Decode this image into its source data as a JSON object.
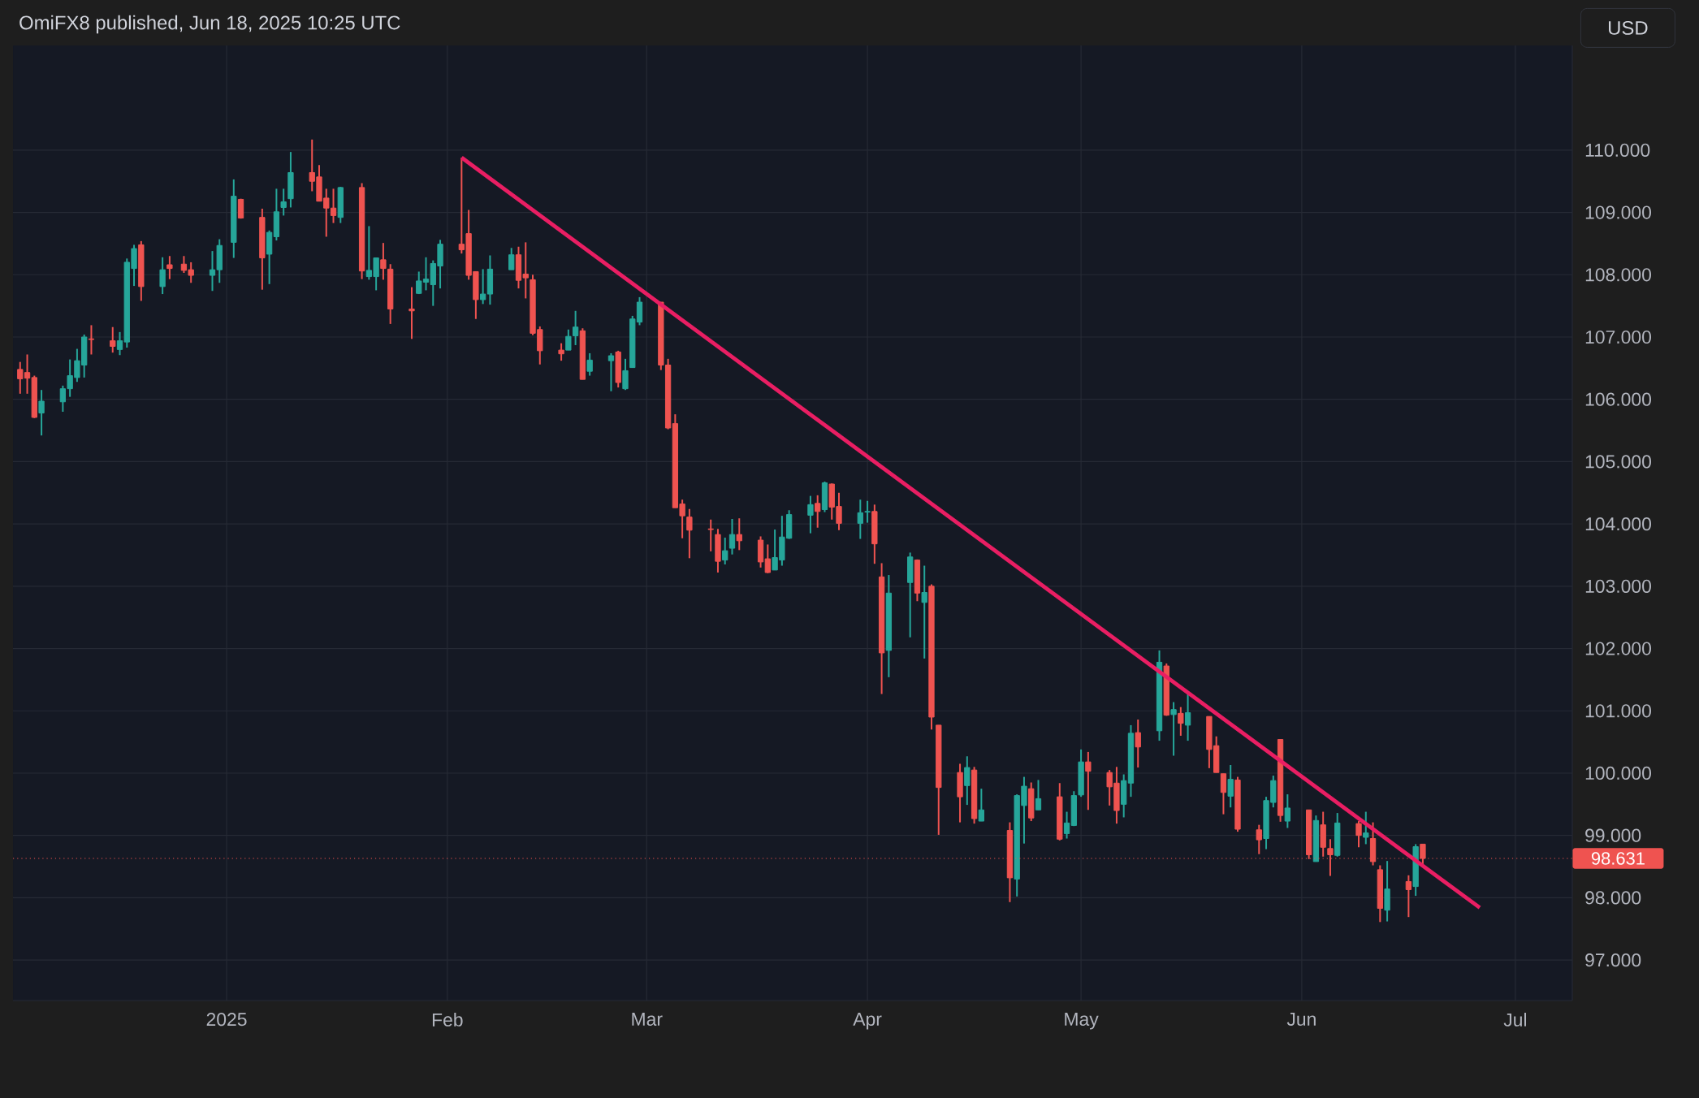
{
  "chart_data": {
    "type": "candlestick",
    "title": "OmiFX8 published, Jun 18, 2025 10:25 UTC",
    "ylabel": "USD",
    "x": [
      "2024-12-03",
      "2024-12-04",
      "2024-12-05",
      "2024-12-06",
      "2024-12-09",
      "2024-12-10",
      "2024-12-11",
      "2024-12-12",
      "2024-12-13",
      "2024-12-16",
      "2024-12-17",
      "2024-12-18",
      "2024-12-19",
      "2024-12-20",
      "2024-12-23",
      "2024-12-24",
      "2024-12-26",
      "2024-12-27",
      "2024-12-30",
      "2024-12-31",
      "2025-01-02",
      "2025-01-03",
      "2025-01-06",
      "2025-01-07",
      "2025-01-08",
      "2025-01-09",
      "2025-01-10",
      "2025-01-13",
      "2025-01-14",
      "2025-01-15",
      "2025-01-16",
      "2025-01-17",
      "2025-01-20",
      "2025-01-21",
      "2025-01-22",
      "2025-01-23",
      "2025-01-24",
      "2025-01-27",
      "2025-01-28",
      "2025-01-29",
      "2025-01-30",
      "2025-01-31",
      "2025-02-03",
      "2025-02-04",
      "2025-02-05",
      "2025-02-06",
      "2025-02-07",
      "2025-02-10",
      "2025-02-11",
      "2025-02-12",
      "2025-02-13",
      "2025-02-14",
      "2025-02-17",
      "2025-02-18",
      "2025-02-19",
      "2025-02-20",
      "2025-02-21",
      "2025-02-24",
      "2025-02-25",
      "2025-02-26",
      "2025-02-27",
      "2025-02-28",
      "2025-03-03",
      "2025-03-04",
      "2025-03-05",
      "2025-03-06",
      "2025-03-07",
      "2025-03-10",
      "2025-03-11",
      "2025-03-12",
      "2025-03-13",
      "2025-03-14",
      "2025-03-17",
      "2025-03-18",
      "2025-03-19",
      "2025-03-20",
      "2025-03-21",
      "2025-03-24",
      "2025-03-25",
      "2025-03-26",
      "2025-03-27",
      "2025-03-28",
      "2025-03-31",
      "2025-04-01",
      "2025-04-02",
      "2025-04-03",
      "2025-04-04",
      "2025-04-07",
      "2025-04-08",
      "2025-04-09",
      "2025-04-10",
      "2025-04-11",
      "2025-04-14",
      "2025-04-15",
      "2025-04-16",
      "2025-04-17",
      "2025-04-21",
      "2025-04-22",
      "2025-04-23",
      "2025-04-24",
      "2025-04-25",
      "2025-04-28",
      "2025-04-29",
      "2025-04-30",
      "2025-05-01",
      "2025-05-02",
      "2025-05-05",
      "2025-05-06",
      "2025-05-07",
      "2025-05-08",
      "2025-05-09",
      "2025-05-12",
      "2025-05-13",
      "2025-05-14",
      "2025-05-15",
      "2025-05-16",
      "2025-05-19",
      "2025-05-20",
      "2025-05-21",
      "2025-05-22",
      "2025-05-23",
      "2025-05-26",
      "2025-05-27",
      "2025-05-28",
      "2025-05-29",
      "2025-05-30",
      "2025-06-02",
      "2025-06-03",
      "2025-06-04",
      "2025-06-05",
      "2025-06-06",
      "2025-06-09",
      "2025-06-10",
      "2025-06-11",
      "2025-06-12",
      "2025-06-13",
      "2025-06-16",
      "2025-06-17",
      "2025-06-18"
    ],
    "ohlc": [
      [
        106.48,
        106.6,
        106.09,
        106.33
      ],
      [
        106.43,
        106.72,
        106.09,
        106.34
      ],
      [
        106.35,
        106.38,
        105.7,
        105.71
      ],
      [
        105.78,
        106.15,
        105.42,
        105.97
      ],
      [
        105.96,
        106.22,
        105.8,
        106.17
      ],
      [
        106.17,
        106.64,
        106.04,
        106.38
      ],
      [
        106.35,
        106.81,
        106.28,
        106.62
      ],
      [
        106.55,
        107.04,
        106.35,
        107.0
      ],
      [
        106.97,
        107.19,
        106.72,
        106.96
      ],
      [
        106.94,
        107.16,
        106.75,
        106.85
      ],
      [
        106.8,
        107.08,
        106.71,
        106.94
      ],
      [
        106.92,
        108.26,
        106.83,
        108.2
      ],
      [
        108.1,
        108.48,
        107.82,
        108.42
      ],
      [
        108.48,
        108.54,
        107.58,
        107.81
      ],
      [
        107.81,
        108.28,
        107.69,
        108.08
      ],
      [
        108.16,
        108.3,
        107.93,
        108.1
      ],
      [
        108.17,
        108.3,
        108.03,
        108.07
      ],
      [
        108.08,
        108.2,
        107.87,
        107.99
      ],
      [
        107.99,
        108.38,
        107.74,
        108.08
      ],
      [
        108.08,
        108.57,
        107.87,
        108.47
      ],
      [
        108.52,
        109.53,
        108.27,
        109.26
      ],
      [
        109.21,
        109.22,
        108.9,
        108.91
      ],
      [
        108.92,
        109.06,
        107.76,
        108.27
      ],
      [
        108.33,
        108.71,
        107.85,
        108.68
      ],
      [
        108.61,
        109.38,
        108.55,
        109.01
      ],
      [
        109.08,
        109.38,
        108.95,
        109.17
      ],
      [
        109.22,
        109.97,
        109.08,
        109.64
      ],
      [
        109.64,
        110.17,
        109.34,
        109.5
      ],
      [
        109.57,
        109.76,
        109.18,
        109.18
      ],
      [
        109.23,
        109.38,
        108.61,
        109.07
      ],
      [
        109.07,
        109.38,
        108.83,
        108.95
      ],
      [
        108.92,
        109.41,
        108.83,
        109.4
      ],
      [
        109.4,
        109.47,
        107.93,
        108.06
      ],
      [
        107.97,
        108.78,
        107.92,
        108.07
      ],
      [
        107.97,
        108.27,
        107.75,
        108.27
      ],
      [
        108.24,
        108.51,
        107.92,
        108.1
      ],
      [
        108.09,
        108.17,
        107.21,
        107.45
      ],
      [
        107.45,
        107.8,
        106.97,
        107.42
      ],
      [
        107.7,
        108.05,
        107.69,
        107.9
      ],
      [
        107.88,
        108.28,
        107.75,
        107.93
      ],
      [
        107.84,
        108.23,
        107.5,
        108.18
      ],
      [
        108.14,
        108.56,
        107.78,
        108.49
      ],
      [
        108.49,
        109.88,
        108.34,
        108.4
      ],
      [
        108.66,
        109.04,
        107.92,
        107.99
      ],
      [
        108.05,
        108.05,
        107.29,
        107.6
      ],
      [
        107.6,
        108.09,
        107.53,
        107.69
      ],
      [
        107.69,
        108.31,
        107.52,
        108.09
      ],
      [
        108.08,
        108.43,
        108.08,
        108.32
      ],
      [
        108.32,
        108.45,
        107.78,
        107.91
      ],
      [
        108.01,
        108.52,
        107.62,
        107.95
      ],
      [
        107.92,
        108.0,
        107.03,
        107.06
      ],
      [
        107.12,
        107.17,
        106.56,
        106.78
      ],
      [
        106.79,
        106.9,
        106.62,
        106.73
      ],
      [
        106.79,
        107.12,
        106.79,
        107.01
      ],
      [
        107.02,
        107.42,
        106.87,
        107.16
      ],
      [
        107.1,
        107.14,
        106.32,
        106.32
      ],
      [
        106.45,
        106.74,
        106.38,
        106.63
      ],
      [
        106.62,
        106.74,
        106.13,
        106.7
      ],
      [
        106.76,
        106.78,
        106.19,
        106.27
      ],
      [
        106.17,
        106.65,
        106.15,
        106.46
      ],
      [
        106.51,
        107.34,
        106.51,
        107.29
      ],
      [
        107.24,
        107.64,
        107.19,
        107.56
      ],
      [
        107.56,
        107.56,
        106.47,
        106.55
      ],
      [
        106.55,
        106.65,
        105.52,
        105.54
      ],
      [
        105.61,
        105.76,
        104.26,
        104.26
      ],
      [
        104.32,
        104.39,
        103.77,
        104.13
      ],
      [
        104.11,
        104.24,
        103.45,
        103.9
      ],
      [
        103.92,
        104.07,
        103.56,
        103.91
      ],
      [
        103.83,
        103.92,
        103.22,
        103.4
      ],
      [
        103.42,
        103.78,
        103.35,
        103.57
      ],
      [
        103.61,
        104.08,
        103.51,
        103.83
      ],
      [
        103.83,
        104.09,
        103.58,
        103.73
      ],
      [
        103.74,
        103.8,
        103.3,
        103.39
      ],
      [
        103.44,
        103.67,
        103.21,
        103.22
      ],
      [
        103.26,
        103.91,
        103.26,
        103.46
      ],
      [
        103.42,
        104.13,
        103.33,
        103.79
      ],
      [
        103.77,
        104.22,
        103.76,
        104.15
      ],
      [
        104.14,
        104.45,
        103.85,
        104.31
      ],
      [
        104.33,
        104.46,
        103.94,
        104.2
      ],
      [
        104.23,
        104.68,
        104.19,
        104.66
      ],
      [
        104.64,
        104.65,
        104.07,
        104.27
      ],
      [
        104.28,
        104.5,
        103.9,
        104.01
      ],
      [
        104.01,
        104.39,
        103.76,
        104.18
      ],
      [
        104.19,
        104.37,
        104.02,
        104.2
      ],
      [
        104.2,
        104.31,
        103.36,
        103.68
      ],
      [
        103.15,
        103.37,
        101.27,
        101.93
      ],
      [
        101.97,
        103.18,
        101.54,
        102.89
      ],
      [
        103.06,
        103.54,
        102.18,
        103.47
      ],
      [
        103.42,
        103.43,
        102.76,
        102.89
      ],
      [
        102.74,
        103.33,
        101.84,
        102.9
      ],
      [
        103.0,
        103.03,
        100.7,
        100.9
      ],
      [
        100.77,
        100.77,
        99.01,
        99.77
      ],
      [
        100.01,
        100.15,
        99.21,
        99.62
      ],
      [
        99.8,
        100.27,
        99.49,
        100.09
      ],
      [
        100.05,
        100.1,
        99.19,
        99.27
      ],
      [
        99.23,
        99.75,
        99.23,
        99.41
      ],
      [
        99.08,
        99.21,
        97.93,
        98.32
      ],
      [
        98.3,
        99.66,
        98.02,
        99.64
      ],
      [
        99.48,
        99.94,
        98.87,
        99.79
      ],
      [
        99.75,
        99.85,
        99.23,
        99.28
      ],
      [
        99.41,
        99.89,
        99.41,
        99.59
      ],
      [
        99.62,
        99.84,
        98.92,
        98.94
      ],
      [
        99.03,
        99.38,
        98.95,
        99.2
      ],
      [
        99.16,
        99.71,
        99.15,
        99.64
      ],
      [
        99.65,
        100.38,
        99.62,
        100.18
      ],
      [
        100.18,
        100.34,
        99.41,
        100.03
      ],
      [
        100.01,
        100.05,
        99.48,
        99.78
      ],
      [
        99.84,
        100.1,
        99.19,
        99.4
      ],
      [
        99.5,
        99.98,
        99.29,
        99.88
      ],
      [
        99.84,
        100.77,
        99.62,
        100.64
      ],
      [
        100.65,
        100.86,
        100.09,
        100.42
      ],
      [
        100.68,
        101.97,
        100.52,
        101.78
      ],
      [
        101.72,
        101.76,
        100.92,
        100.93
      ],
      [
        100.94,
        101.14,
        100.28,
        101.02
      ],
      [
        100.96,
        101.06,
        100.6,
        100.8
      ],
      [
        100.77,
        101.27,
        100.52,
        100.97
      ],
      [
        100.91,
        100.91,
        100.08,
        100.38
      ],
      [
        100.44,
        100.59,
        100.01,
        100.01
      ],
      [
        99.99,
        99.99,
        99.34,
        99.69
      ],
      [
        99.63,
        100.13,
        99.45,
        99.9
      ],
      [
        99.89,
        99.94,
        99.06,
        99.1
      ],
      [
        99.09,
        99.17,
        98.7,
        98.93
      ],
      [
        98.95,
        99.62,
        98.78,
        99.56
      ],
      [
        99.53,
        99.96,
        99.45,
        99.88
      ],
      [
        100.54,
        100.54,
        99.22,
        99.32
      ],
      [
        99.23,
        99.66,
        99.12,
        99.44
      ],
      [
        99.41,
        99.41,
        98.62,
        98.69
      ],
      [
        98.58,
        99.32,
        98.58,
        99.24
      ],
      [
        99.17,
        99.38,
        98.66,
        98.81
      ],
      [
        98.79,
        98.94,
        98.35,
        98.69
      ],
      [
        98.68,
        99.36,
        98.66,
        99.2
      ],
      [
        99.19,
        99.23,
        98.81,
        99.0
      ],
      [
        98.97,
        99.38,
        98.86,
        99.04
      ],
      [
        98.95,
        99.21,
        98.52,
        98.58
      ],
      [
        98.45,
        98.52,
        97.61,
        97.83
      ],
      [
        97.8,
        98.59,
        97.62,
        98.14
      ],
      [
        98.26,
        98.36,
        97.69,
        98.13
      ],
      [
        98.18,
        98.86,
        98.03,
        98.82
      ],
      [
        98.86,
        98.86,
        98.51,
        98.631
      ]
    ],
    "colors": [
      "#ef5350",
      "#ef5350",
      "#ef5350",
      "#26a69a",
      "#26a69a",
      "#26a69a",
      "#26a69a",
      "#26a69a",
      "#ef5350",
      "#ef5350",
      "#26a69a",
      "#26a69a",
      "#26a69a",
      "#ef5350",
      "#26a69a",
      "#ef5350",
      "#ef5350",
      "#ef5350",
      "#26a69a",
      "#26a69a",
      "#26a69a",
      "#ef5350",
      "#ef5350",
      "#26a69a",
      "#26a69a",
      "#26a69a",
      "#26a69a",
      "#ef5350",
      "#ef5350",
      "#ef5350",
      "#ef5350",
      "#26a69a",
      "#ef5350",
      "#26a69a",
      "#26a69a",
      "#ef5350",
      "#ef5350",
      "#ef5350",
      "#26a69a",
      "#26a69a",
      "#26a69a",
      "#26a69a",
      "#ef5350",
      "#ef5350",
      "#ef5350",
      "#26a69a",
      "#26a69a",
      "#26a69a",
      "#ef5350",
      "#ef5350",
      "#ef5350",
      "#ef5350",
      "#ef5350",
      "#26a69a",
      "#26a69a",
      "#ef5350",
      "#26a69a",
      "#26a69a",
      "#ef5350",
      "#26a69a",
      "#26a69a",
      "#26a69a",
      "#ef5350",
      "#ef5350",
      "#ef5350",
      "#ef5350",
      "#ef5350",
      "#ef5350",
      "#ef5350",
      "#26a69a",
      "#26a69a",
      "#ef5350",
      "#ef5350",
      "#ef5350",
      "#26a69a",
      "#26a69a",
      "#26a69a",
      "#26a69a",
      "#ef5350",
      "#26a69a",
      "#ef5350",
      "#ef5350",
      "#26a69a",
      "#26a69a",
      "#ef5350",
      "#ef5350",
      "#26a69a",
      "#26a69a",
      "#ef5350",
      "#26a69a",
      "#ef5350",
      "#ef5350",
      "#ef5350",
      "#26a69a",
      "#ef5350",
      "#26a69a",
      "#ef5350",
      "#26a69a",
      "#26a69a",
      "#ef5350",
      "#26a69a",
      "#ef5350",
      "#26a69a",
      "#26a69a",
      "#26a69a",
      "#ef5350",
      "#ef5350",
      "#ef5350",
      "#26a69a",
      "#26a69a",
      "#ef5350",
      "#26a69a",
      "#ef5350",
      "#26a69a",
      "#ef5350",
      "#26a69a",
      "#ef5350",
      "#ef5350",
      "#ef5350",
      "#26a69a",
      "#ef5350",
      "#ef5350",
      "#26a69a",
      "#26a69a",
      "#ef5350",
      "#26a69a",
      "#ef5350",
      "#26a69a",
      "#ef5350",
      "#ef5350",
      "#26a69a",
      "#ef5350",
      "#26a69a",
      "#ef5350",
      "#ef5350",
      "#26a69a",
      "#ef5350",
      "#26a69a",
      "#ef5350"
    ],
    "series": [
      {
        "type": "line",
        "x": [
          "2025-02-03",
          "2025-06-26"
        ],
        "values": [
          109.88,
          97.84
        ],
        "color": "#e91e63"
      }
    ],
    "ref_lines": [
      {
        "axis": "y",
        "value": 98.631,
        "label": "98.631",
        "color": "#ef5350",
        "line_style": "dotted"
      }
    ],
    "xlim": [
      "2024-12-02",
      "2025-07-09"
    ],
    "xticks": [
      {
        "value": "2025-01-01",
        "label": "2025"
      },
      {
        "value": "2025-02-01",
        "label": "Feb"
      },
      {
        "value": "2025-03-01",
        "label": "Mar"
      },
      {
        "value": "2025-04-01",
        "label": "Apr"
      },
      {
        "value": "2025-05-01",
        "label": "May"
      },
      {
        "value": "2025-06-01",
        "label": "Jun"
      },
      {
        "value": "2025-07-01",
        "label": "Jul"
      }
    ],
    "ylim": [
      96.35,
      111.68
    ],
    "yticks": [
      {
        "value": 97,
        "label": "97.000"
      },
      {
        "value": 98,
        "label": "98.000"
      },
      {
        "value": 99,
        "label": "99.000"
      },
      {
        "value": 100,
        "label": "100.000"
      },
      {
        "value": 101,
        "label": "101.000"
      },
      {
        "value": 102,
        "label": "102.000"
      },
      {
        "value": 103,
        "label": "103.000"
      },
      {
        "value": 104,
        "label": "104.000"
      },
      {
        "value": 105,
        "label": "105.000"
      },
      {
        "value": 106,
        "label": "106.000"
      },
      {
        "value": 107,
        "label": "107.000"
      },
      {
        "value": 108,
        "label": "108.000"
      },
      {
        "value": 109,
        "label": "109.000"
      },
      {
        "value": 110,
        "label": "110.000"
      }
    ],
    "grid": true
  }
}
